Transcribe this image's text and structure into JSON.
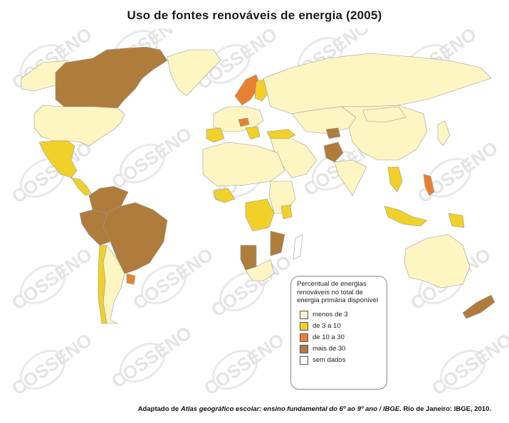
{
  "title": "Uso de fontes renováveis de energia (2005)",
  "watermark": "COSSENO",
  "legend": {
    "title": "Percentual de energias renováveis no total de energia primária disponível",
    "items": [
      {
        "label": "menos de 3",
        "color": "#fdf5c2"
      },
      {
        "label": "de 3 a 10",
        "color": "#f2d02a"
      },
      {
        "label": "de 10 a 30",
        "color": "#e88032"
      },
      {
        "label": "mais de 30",
        "color": "#b07c3c"
      },
      {
        "label": "sem dados",
        "color": "#ffffff"
      }
    ]
  },
  "source": {
    "prefix": "Adaptado de ",
    "work": "Atlas geográfico escolar: ensino fundamental do 6º ao 9º ano / IBGE",
    "suffix": ". Rio de Janeiro: IBGE, 2010."
  }
}
